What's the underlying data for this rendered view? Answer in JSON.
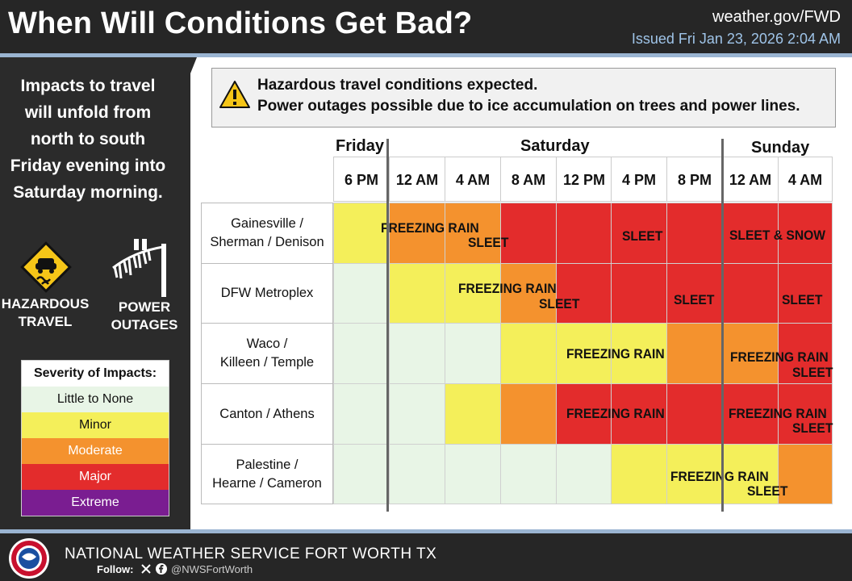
{
  "header": {
    "title": "When Will Conditions Get Bad?",
    "site": "weather.gov/FWD",
    "issued": "Issued Fri Jan 23, 2026 2:04 AM"
  },
  "left": {
    "message_lines": [
      "Impacts to travel",
      "will unfold from",
      "north to south",
      "Friday evening into",
      "Saturday morning."
    ],
    "hazardous_label_1": "HAZARDOUS",
    "hazardous_label_2": "TRAVEL",
    "power_label_1": "POWER",
    "power_label_2": "OUTAGES"
  },
  "legend": {
    "title": "Severity of Impacts:",
    "items": [
      {
        "label": "Little to None",
        "color": "#e8f5e6",
        "text_color": "#111111"
      },
      {
        "label": "Minor",
        "color": "#f4ef5a",
        "text_color": "#111111"
      },
      {
        "label": "Moderate",
        "color": "#f4922e",
        "text_color": "#ffffff"
      },
      {
        "label": "Major",
        "color": "#e32c2c",
        "text_color": "#ffffff"
      },
      {
        "label": "Extreme",
        "color": "#7a1d91",
        "text_color": "#ffffff"
      }
    ]
  },
  "banner": {
    "line1": "Hazardous travel conditions expected.",
    "line2": "Power outages possible due to ice accumulation on trees and power lines."
  },
  "days": [
    "Friday",
    "Saturday",
    "Sunday"
  ],
  "times": [
    "6 PM",
    "12 AM",
    "4 AM",
    "8 AM",
    "12 PM",
    "4 PM",
    "8 PM",
    "12 AM",
    "4 AM"
  ],
  "locations": [
    {
      "line1": "Gainesville /",
      "line2": "Sherman / Denison",
      "levels": [
        1,
        2,
        2,
        3,
        3,
        3,
        3,
        3,
        3
      ]
    },
    {
      "line1": "DFW Metroplex",
      "line2": "",
      "levels": [
        0,
        1,
        1,
        2,
        3,
        3,
        3,
        3,
        3
      ]
    },
    {
      "line1": "Waco /",
      "line2": "Killeen / Temple",
      "levels": [
        0,
        0,
        0,
        1,
        1,
        1,
        2,
        2,
        3
      ]
    },
    {
      "line1": "Canton / Athens",
      "line2": "",
      "levels": [
        0,
        0,
        1,
        2,
        3,
        3,
        3,
        3,
        3
      ]
    },
    {
      "line1": "Palestine /",
      "line2": "Hearne / Cameron",
      "levels": [
        0,
        0,
        0,
        0,
        0,
        1,
        1,
        1,
        2
      ]
    }
  ],
  "labels": {
    "r0a": "FREEZING RAIN",
    "r0b": "SLEET",
    "r0c": "SLEET",
    "r0d": "SLEET & SNOW",
    "r1a": "FREEZING RAIN",
    "r1b": "SLEET",
    "r1c": "SLEET",
    "r1d": "SLEET",
    "r2a": "FREEZING RAIN",
    "r2b": "FREEZING RAIN",
    "r2c": "SLEET",
    "r3a": "FREEZING RAIN",
    "r3b": "FREEZING RAIN",
    "r3c": "SLEET",
    "r4a": "FREEZING RAIN",
    "r4b": "SLEET"
  },
  "footer": {
    "agency": "NATIONAL WEATHER SERVICE FORT WORTH TX",
    "follow": "Follow:",
    "handle": "@NWSFortWorth"
  }
}
